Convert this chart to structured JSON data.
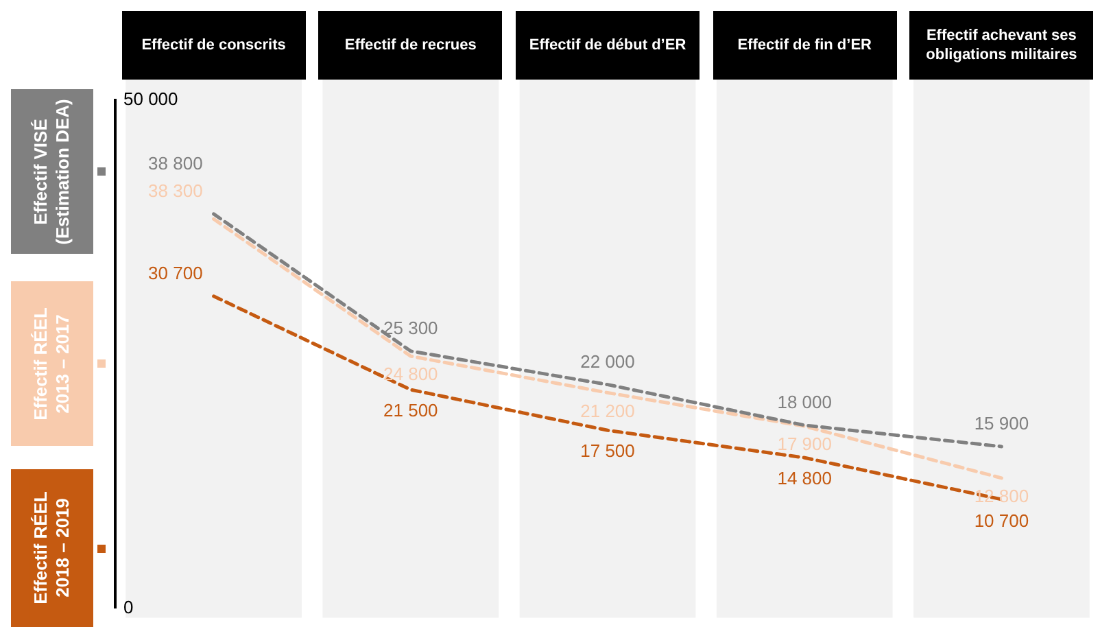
{
  "chart_data": {
    "type": "line",
    "categories": [
      "Effectif de conscrits",
      "Effectif de recrues",
      "Effectif de début d’ER",
      "Effectif de fin d’ER",
      "Effectif achevant ses obligations militaires"
    ],
    "series": [
      {
        "name": "Effectif VISÉ (Estimation DEA)",
        "color": "#808080",
        "values": [
          38800,
          25300,
          22000,
          18000,
          15900
        ]
      },
      {
        "name": "Effectif RÉEL 2013 – 2017",
        "color": "#f8cbad",
        "values": [
          38300,
          24800,
          21200,
          17900,
          12800
        ]
      },
      {
        "name": "Effectif RÉEL 2018 – 2019",
        "color": "#c55a11",
        "values": [
          30700,
          21500,
          17500,
          14800,
          10700
        ]
      }
    ],
    "ylim": [
      0,
      50000
    ],
    "yticks": [
      {
        "value": 0,
        "label": "0"
      },
      {
        "value": 50000,
        "label": "50 000"
      }
    ],
    "bands": [
      {
        "axis": "x",
        "from": "Effectif de conscrits",
        "to": "Effectif de conscrits",
        "color": "#f2f2f2"
      },
      {
        "axis": "x",
        "from": "Effectif de recrues",
        "to": "Effectif de recrues",
        "color": "#f2f2f2"
      },
      {
        "axis": "x",
        "from": "Effectif de début d’ER",
        "to": "Effectif de début d’ER",
        "color": "#f2f2f2"
      },
      {
        "axis": "x",
        "from": "Effectif de fin d’ER",
        "to": "Effectif de fin d’ER",
        "color": "#f2f2f2"
      },
      {
        "axis": "x",
        "from": "Effectif achevant ses obligations militaires",
        "to": "Effectif achevant ses obligations militaires",
        "color": "#f2f2f2"
      }
    ],
    "grid": false,
    "legend": "left",
    "marker": "none",
    "line_style": "dashed",
    "data_labels": true
  }
}
